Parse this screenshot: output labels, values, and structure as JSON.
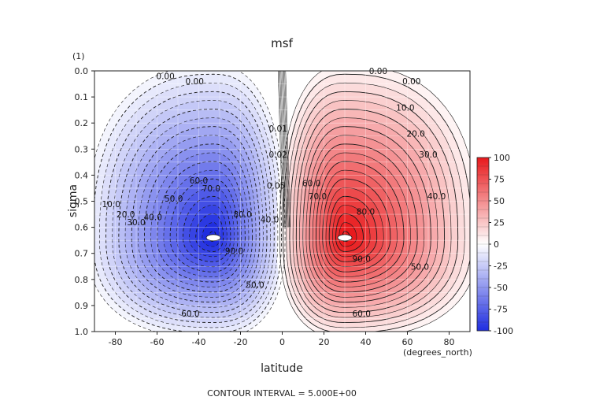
{
  "chart_data": {
    "type": "contour",
    "title": "msf",
    "xlabel": "latitude",
    "x_units": "(degrees_north)",
    "ylabel": "sigma",
    "y_units": "(1)",
    "footer": "CONTOUR INTERVAL = 5.000E+00",
    "xlim": [
      -90,
      90
    ],
    "ylim": [
      0.0,
      1.0
    ],
    "y_inverted": true,
    "x_ticks": [
      "-80",
      "-60",
      "-40",
      "-20",
      "0",
      "20",
      "40",
      "60",
      "80"
    ],
    "y_ticks": [
      "0.0",
      "0.1",
      "0.2",
      "0.3",
      "0.4",
      "0.5",
      "0.6",
      "0.7",
      "0.8",
      "0.9",
      "1.0"
    ],
    "contour_interval": 5.0,
    "colorbar": {
      "ticks": [
        "100",
        "75",
        "50",
        "25",
        "0",
        "-25",
        "-50",
        "-75",
        "-100"
      ],
      "min": -100,
      "max": 100,
      "colors": {
        "negative": "#1f2de0",
        "zero": "#ffffff",
        "positive": "#e8191c"
      }
    },
    "cells": [
      {
        "name": "southern cell",
        "sign": "negative",
        "center_lat": -33,
        "center_sigma": 0.64,
        "peak": -100
      },
      {
        "name": "northern cell",
        "sign": "positive",
        "center_lat": 30,
        "center_sigma": 0.64,
        "peak": 100
      }
    ],
    "contour_labels": [
      {
        "text": "0.00",
        "lat": -56,
        "sigma": 0.02
      },
      {
        "text": "0.00",
        "lat": -42,
        "sigma": 0.04
      },
      {
        "text": "0.00",
        "lat": 46,
        "sigma": 0.0
      },
      {
        "text": "0.00",
        "lat": 62,
        "sigma": 0.04
      },
      {
        "text": "10.0",
        "lat": -82,
        "sigma": 0.51
      },
      {
        "text": "20.0",
        "lat": -75,
        "sigma": 0.55
      },
      {
        "text": "30.0",
        "lat": -70,
        "sigma": 0.58
      },
      {
        "text": "40.0",
        "lat": -62,
        "sigma": 0.56
      },
      {
        "text": "50.0",
        "lat": -52,
        "sigma": 0.49
      },
      {
        "text": "60.0",
        "lat": -40,
        "sigma": 0.42
      },
      {
        "text": "70.0",
        "lat": -34,
        "sigma": 0.45
      },
      {
        "text": "80.0",
        "lat": -19,
        "sigma": 0.55
      },
      {
        "text": "90.0",
        "lat": -23,
        "sigma": 0.69
      },
      {
        "text": "50.0",
        "lat": -13,
        "sigma": 0.82
      },
      {
        "text": "60.0",
        "lat": -44,
        "sigma": 0.93
      },
      {
        "text": "40.0",
        "lat": -6,
        "sigma": 0.57
      },
      {
        "text": "0.01",
        "lat": -2,
        "sigma": 0.22
      },
      {
        "text": "0.02",
        "lat": -2,
        "sigma": 0.32
      },
      {
        "text": "0.05",
        "lat": -3,
        "sigma": 0.44
      },
      {
        "text": "10.0",
        "lat": 59,
        "sigma": 0.14
      },
      {
        "text": "20.0",
        "lat": 64,
        "sigma": 0.24
      },
      {
        "text": "30.0",
        "lat": 70,
        "sigma": 0.32
      },
      {
        "text": "40.0",
        "lat": 74,
        "sigma": 0.48
      },
      {
        "text": "50.0",
        "lat": 66,
        "sigma": 0.75
      },
      {
        "text": "60.0",
        "lat": 14,
        "sigma": 0.43
      },
      {
        "text": "70.0",
        "lat": 17,
        "sigma": 0.48
      },
      {
        "text": "80.0",
        "lat": 40,
        "sigma": 0.54
      },
      {
        "text": "90.0",
        "lat": 38,
        "sigma": 0.72
      },
      {
        "text": "60.0",
        "lat": 38,
        "sigma": 0.93
      }
    ]
  }
}
